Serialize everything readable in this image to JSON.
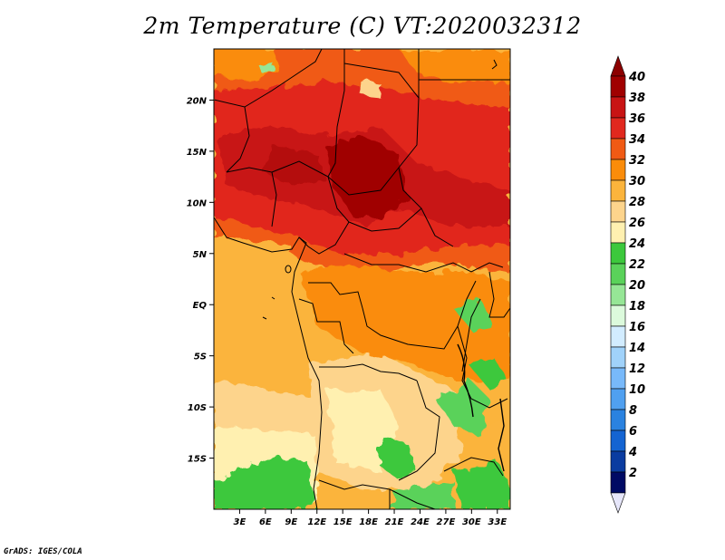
{
  "title": "2m Temperature (C) VT:2020032312",
  "credit": "GrADS: IGES/COLA",
  "map": {
    "x_ticks": [
      {
        "label": "3E",
        "lon": 3
      },
      {
        "label": "6E",
        "lon": 6
      },
      {
        "label": "9E",
        "lon": 9
      },
      {
        "label": "12E",
        "lon": 12
      },
      {
        "label": "15E",
        "lon": 15
      },
      {
        "label": "18E",
        "lon": 18
      },
      {
        "label": "21E",
        "lon": 21
      },
      {
        "label": "24E",
        "lon": 24
      },
      {
        "label": "27E",
        "lon": 27
      },
      {
        "label": "30E",
        "lon": 30
      },
      {
        "label": "33E",
        "lon": 33
      }
    ],
    "y_ticks": [
      {
        "label": "20N",
        "lat": 20
      },
      {
        "label": "15N",
        "lat": 15
      },
      {
        "label": "10N",
        "lat": 10
      },
      {
        "label": "5N",
        "lat": 5
      },
      {
        "label": "EQ",
        "lat": 0
      },
      {
        "label": "5S",
        "lat": -5
      },
      {
        "label": "10S",
        "lat": -10
      },
      {
        "label": "15S",
        "lat": -15
      }
    ],
    "lon_range": [
      0,
      34.5
    ],
    "lat_range": [
      -20,
      25
    ]
  },
  "colorbar": {
    "levels": [
      "40",
      "38",
      "36",
      "34",
      "32",
      "30",
      "28",
      "26",
      "24",
      "22",
      "20",
      "18",
      "16",
      "14",
      "12",
      "10",
      "8",
      "6",
      "4",
      "2"
    ],
    "colors": [
      "#a00000",
      "#c81414",
      "#e1281e",
      "#f05a14",
      "#fa8c0a",
      "#fbb43c",
      "#fdd48c",
      "#fff0b0",
      "#3cc83c",
      "#5ad25a",
      "#96e696",
      "#dcfadc",
      "#d2ecff",
      "#a0d2fa",
      "#78b9fa",
      "#50a0f0",
      "#2a82e0",
      "#1464d2",
      "#0a3ca0",
      "#000a64"
    ],
    "top_color": "#8c0000",
    "bottom_color": "#e6e6fa"
  }
}
